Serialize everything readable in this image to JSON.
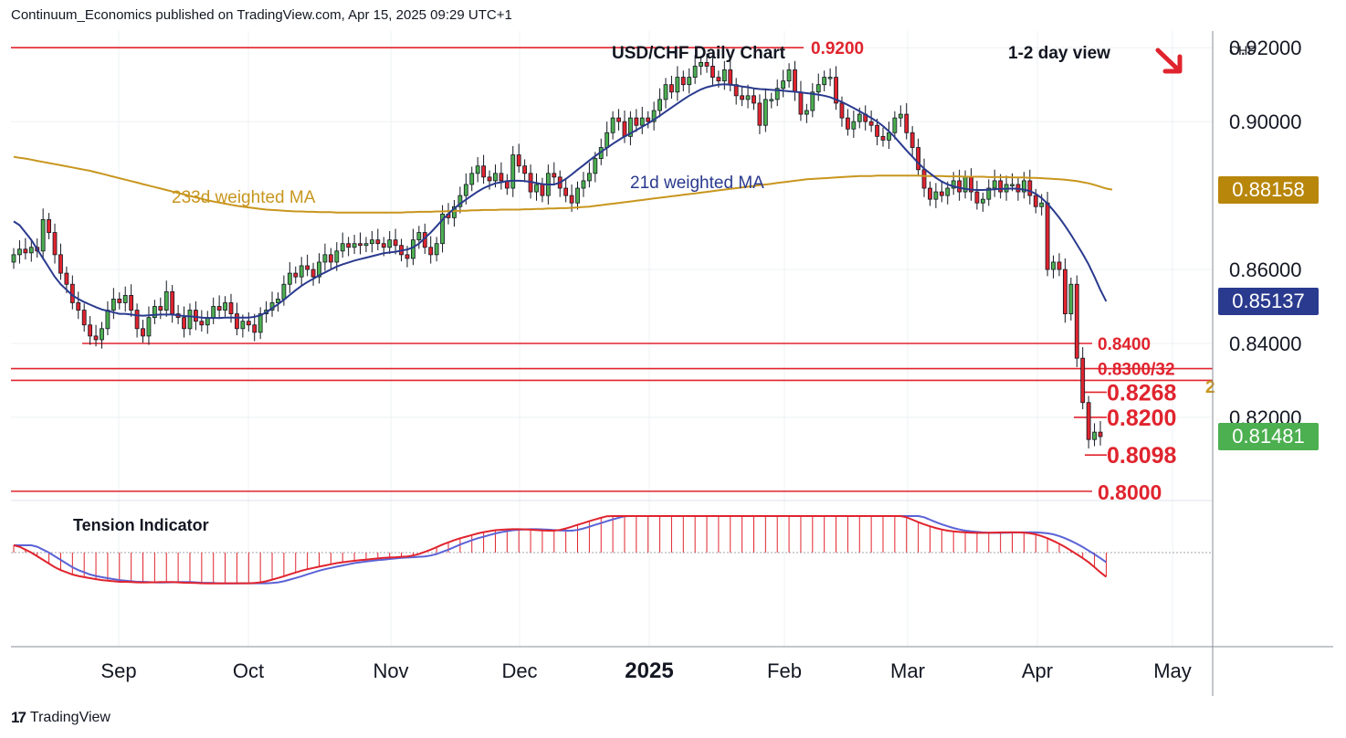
{
  "header": {
    "publisher": "Continuum_Economics published on TradingView.com, Apr 15, 2025 09:29 UTC+1"
  },
  "footer": {
    "logo": "17",
    "brand": "TradingView"
  },
  "chart_data": {
    "type": "candlestick",
    "title": "USD/CHF Daily Chart",
    "view_label": "1-2 day view",
    "view_direction": "down",
    "currency": "CHF",
    "y_ticks": [
      "0.92000",
      "0.90000",
      "0.86000",
      "0.84000",
      "0.82000"
    ],
    "ylim": [
      0.7975,
      0.9245
    ],
    "x_ticks": [
      "Sep",
      "Oct",
      "Nov",
      "Dec",
      "2025",
      "Feb",
      "Mar",
      "Apr",
      "May"
    ],
    "price_tags": [
      {
        "label": "0.88158",
        "color": "#b8860b"
      },
      {
        "label": "0.85137",
        "color": "#2a3a8e"
      },
      {
        "label": "0.81481",
        "color": "#4caf50"
      }
    ],
    "levels": [
      {
        "value": 0.92,
        "label": "0.9200"
      },
      {
        "value": 0.84,
        "label": "0.8400"
      },
      {
        "value": 0.8332,
        "label": "0.8300/32"
      },
      {
        "value": 0.83,
        "label": ""
      },
      {
        "value": 0.8268,
        "label": "0.8268"
      },
      {
        "value": 0.82,
        "label": "0.8200"
      },
      {
        "value": 0.8098,
        "label": "0.8098"
      },
      {
        "value": 0.8,
        "label": "0.8000"
      }
    ],
    "annotations": {
      "ma233": "233d weighted MA",
      "ma21": "21d weighted MA",
      "tension": "Tension Indicator",
      "edge": "2"
    },
    "colors": {
      "up": "#4caf50",
      "down": "#e0242e",
      "ma233": "#c8961e",
      "ma21": "#2a3a8e",
      "level": "#e0242e"
    },
    "closes": [
      0.864,
      0.8655,
      0.8645,
      0.866,
      0.865,
      0.8735,
      0.87,
      0.864,
      0.859,
      0.856,
      0.851,
      0.849,
      0.845,
      0.842,
      0.841,
      0.844,
      0.849,
      0.852,
      0.851,
      0.853,
      0.849,
      0.844,
      0.842,
      0.847,
      0.85,
      0.849,
      0.854,
      0.848,
      0.847,
      0.844,
      0.849,
      0.846,
      0.845,
      0.847,
      0.85,
      0.849,
      0.851,
      0.848,
      0.844,
      0.846,
      0.845,
      0.843,
      0.848,
      0.849,
      0.851,
      0.852,
      0.856,
      0.859,
      0.858,
      0.861,
      0.86,
      0.858,
      0.862,
      0.864,
      0.862,
      0.865,
      0.867,
      0.866,
      0.867,
      0.8665,
      0.867,
      0.868,
      0.867,
      0.866,
      0.868,
      0.8665,
      0.864,
      0.863,
      0.868,
      0.87,
      0.866,
      0.864,
      0.867,
      0.875,
      0.874,
      0.877,
      0.88,
      0.883,
      0.886,
      0.888,
      0.885,
      0.884,
      0.886,
      0.884,
      0.882,
      0.891,
      0.888,
      0.886,
      0.881,
      0.883,
      0.88,
      0.886,
      0.885,
      0.882,
      0.88,
      0.878,
      0.882,
      0.884,
      0.886,
      0.89,
      0.893,
      0.897,
      0.901,
      0.9,
      0.896,
      0.901,
      0.899,
      0.901,
      0.9,
      0.903,
      0.906,
      0.91,
      0.908,
      0.912,
      0.91,
      0.912,
      0.915,
      0.916,
      0.915,
      0.912,
      0.911,
      0.914,
      0.91,
      0.907,
      0.906,
      0.907,
      0.905,
      0.899,
      0.906,
      0.906,
      0.909,
      0.911,
      0.914,
      0.908,
      0.902,
      0.903,
      0.908,
      0.91,
      0.912,
      0.912,
      0.905,
      0.901,
      0.898,
      0.9,
      0.902,
      0.9,
      0.899,
      0.896,
      0.895,
      0.897,
      0.901,
      0.902,
      0.897,
      0.893,
      0.887,
      0.882,
      0.879,
      0.881,
      0.88,
      0.882,
      0.884,
      0.881,
      0.885,
      0.881,
      0.878,
      0.879,
      0.882,
      0.884,
      0.881,
      0.883,
      0.883,
      0.881,
      0.884,
      0.88,
      0.877,
      0.878,
      0.86,
      0.862,
      0.86,
      0.848,
      0.856,
      0.836,
      0.824,
      0.814,
      0.816,
      0.8148
    ],
    "ma21": [
      0.873,
      0.872,
      0.87,
      0.868,
      0.8655,
      0.863,
      0.8605,
      0.858,
      0.856,
      0.8545,
      0.853,
      0.852,
      0.8512,
      0.8505,
      0.8498,
      0.8492,
      0.8488,
      0.8484,
      0.848,
      0.848,
      0.8478,
      0.8476,
      0.8475,
      0.8476,
      0.8477,
      0.8478,
      0.8478,
      0.8478,
      0.8476,
      0.8474,
      0.8473,
      0.8472,
      0.847,
      0.8469,
      0.8469,
      0.8469,
      0.847,
      0.847,
      0.847,
      0.847,
      0.847,
      0.8472,
      0.8476,
      0.8484,
      0.8495,
      0.8506,
      0.8518,
      0.8531,
      0.8544,
      0.8556,
      0.8566,
      0.8575,
      0.8584,
      0.8592,
      0.86,
      0.8608,
      0.8614,
      0.8619,
      0.8624,
      0.8628,
      0.8632,
      0.8636,
      0.864,
      0.8644,
      0.8646,
      0.8648,
      0.8651,
      0.8654,
      0.866,
      0.867,
      0.8685,
      0.87,
      0.8717,
      0.8735,
      0.875,
      0.8765,
      0.8778,
      0.8789,
      0.88,
      0.8811,
      0.882,
      0.8827,
      0.8833,
      0.8836,
      0.8839,
      0.884,
      0.884,
      0.8839,
      0.8837,
      0.8834,
      0.8831,
      0.883,
      0.883,
      0.8835,
      0.8845,
      0.8857,
      0.887,
      0.8882,
      0.8895,
      0.8907,
      0.8918,
      0.8929,
      0.894,
      0.895,
      0.896,
      0.8968,
      0.8977,
      0.8986,
      0.8995,
      0.9005,
      0.9016,
      0.9027,
      0.9038,
      0.9049,
      0.906,
      0.907,
      0.9079,
      0.9087,
      0.9093,
      0.9097,
      0.91,
      0.9101,
      0.91,
      0.9098,
      0.9095,
      0.9093,
      0.909,
      0.9088,
      0.9087,
      0.9086,
      0.9085,
      0.9084,
      0.9082,
      0.9081,
      0.9079,
      0.9077,
      0.9075,
      0.9073,
      0.907,
      0.9066,
      0.906,
      0.9053,
      0.9045,
      0.9037,
      0.9028,
      0.9019,
      0.901,
      0.9,
      0.8988,
      0.8974,
      0.8958,
      0.894,
      0.8922,
      0.8905,
      0.8888,
      0.8873,
      0.886,
      0.8848,
      0.8838,
      0.883,
      0.8825,
      0.8821,
      0.8818,
      0.8816,
      0.8815,
      0.8815,
      0.8816,
      0.8817,
      0.8818,
      0.8818,
      0.8819,
      0.8818,
      0.8816,
      0.8812,
      0.8805,
      0.8793,
      0.8778,
      0.876,
      0.874,
      0.8718,
      0.8694,
      0.8668,
      0.8642,
      0.8614,
      0.858,
      0.8545,
      0.8514
    ],
    "ma233": [
      0.8905,
      0.8902,
      0.89,
      0.8897,
      0.8894,
      0.8891,
      0.8888,
      0.8885,
      0.8882,
      0.8879,
      0.8876,
      0.8873,
      0.887,
      0.8867,
      0.8863,
      0.8859,
      0.8855,
      0.8851,
      0.8847,
      0.8843,
      0.8839,
      0.8835,
      0.8831,
      0.8827,
      0.8823,
      0.8819,
      0.8815,
      0.8811,
      0.8807,
      0.8803,
      0.8799,
      0.8795,
      0.8791,
      0.8787,
      0.8784,
      0.8781,
      0.8778,
      0.8775,
      0.8772,
      0.877,
      0.8768,
      0.8766,
      0.8764,
      0.8762,
      0.8761,
      0.876,
      0.8759,
      0.8758,
      0.8757,
      0.8757,
      0.8756,
      0.8756,
      0.8755,
      0.8755,
      0.8755,
      0.8754,
      0.8754,
      0.8754,
      0.8754,
      0.8754,
      0.8754,
      0.8754,
      0.8754,
      0.8754,
      0.8754,
      0.8754,
      0.8754,
      0.8755,
      0.8755,
      0.8756,
      0.8756,
      0.8756,
      0.8757,
      0.8757,
      0.8758,
      0.8758,
      0.8759,
      0.8759,
      0.876,
      0.876,
      0.8761,
      0.8761,
      0.8761,
      0.8762,
      0.8762,
      0.8762,
      0.8762,
      0.8763,
      0.8763,
      0.8764,
      0.8764,
      0.8765,
      0.8765,
      0.8766,
      0.8766,
      0.8767,
      0.8768,
      0.8769,
      0.877,
      0.8772,
      0.8774,
      0.8776,
      0.8778,
      0.878,
      0.8782,
      0.8784,
      0.8786,
      0.8788,
      0.879,
      0.8792,
      0.8794,
      0.8796,
      0.8798,
      0.88,
      0.8802,
      0.8804,
      0.8806,
      0.8808,
      0.881,
      0.8812,
      0.8814,
      0.8816,
      0.8818,
      0.882,
      0.8822,
      0.8824,
      0.8826,
      0.8828,
      0.883,
      0.8832,
      0.8834,
      0.8836,
      0.8838,
      0.884,
      0.8842,
      0.8844,
      0.8845,
      0.8846,
      0.8847,
      0.8848,
      0.8849,
      0.885,
      0.8851,
      0.8852,
      0.8853,
      0.8853,
      0.8853,
      0.8854,
      0.8854,
      0.8854,
      0.8854,
      0.8854,
      0.8854,
      0.8854,
      0.8854,
      0.8853,
      0.8853,
      0.8853,
      0.8853,
      0.8852,
      0.8852,
      0.8852,
      0.8851,
      0.8851,
      0.8851,
      0.8851,
      0.885,
      0.885,
      0.885,
      0.885,
      0.8849,
      0.8849,
      0.8849,
      0.8848,
      0.8848,
      0.8847,
      0.8846,
      0.8845,
      0.8844,
      0.8843,
      0.8841,
      0.8839,
      0.8836,
      0.8833,
      0.8829,
      0.8824,
      0.8819,
      0.8816
    ]
  }
}
